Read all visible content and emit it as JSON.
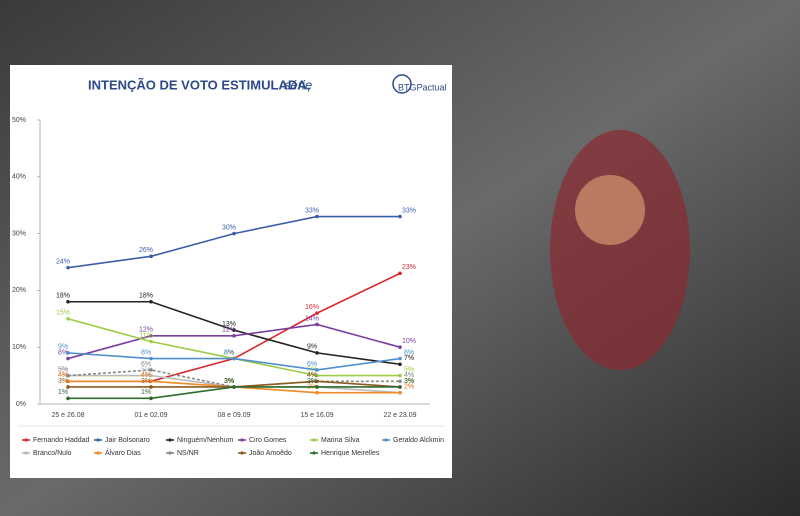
{
  "chart_data": {
    "type": "line",
    "title": "INTENÇÃO DE VOTO ESTIMULADA,",
    "subtitle": "série",
    "logo": "BTGPactual",
    "categories": [
      "25 e 26.08",
      "01 e 02.09",
      "08 e 09.09",
      "15 e 16.09",
      "22 e 23.09"
    ],
    "ylim": [
      0,
      50
    ],
    "yticks": [
      {
        "value": 0,
        "label": "0%"
      },
      {
        "value": 10,
        "label": "10%"
      },
      {
        "value": 20,
        "label": "20%"
      },
      {
        "value": 30,
        "label": "30%"
      },
      {
        "value": 40,
        "label": "40%"
      },
      {
        "value": 50,
        "label": "50%"
      }
    ],
    "grid": false,
    "series": [
      {
        "name": "Fernando Haddad",
        "color": "#d9262c",
        "values": [
          4,
          4,
          8,
          16,
          23
        ],
        "value_labels": [
          "4%",
          "4%",
          "8%",
          "16%",
          "23%"
        ]
      },
      {
        "name": "Jair Bolsonaro",
        "color": "#3b5ea8",
        "values": [
          24,
          26,
          30,
          33,
          33
        ],
        "value_labels": [
          "24%",
          "26%",
          "30%",
          "33%",
          "33%"
        ]
      },
      {
        "name": "Ninguém/Nenhum",
        "color": "#222222",
        "values": [
          18,
          18,
          13,
          9,
          7
        ],
        "value_labels": [
          "18%",
          "18%",
          "13%",
          "9%",
          "7%"
        ]
      },
      {
        "name": "Ciro Gomes",
        "color": "#7b3fa0",
        "values": [
          8,
          12,
          12,
          14,
          10
        ],
        "value_labels": [
          "8%",
          "12%",
          "12%",
          "14%",
          "10%"
        ]
      },
      {
        "name": "Marina Silva",
        "color": "#9ccc45",
        "values": [
          15,
          11,
          8,
          5,
          5
        ],
        "value_labels": [
          "15%",
          "11%",
          "8%",
          "5%",
          "5%"
        ]
      },
      {
        "name": "Geraldo Alckmin",
        "color": "#4f8fcf",
        "values": [
          9,
          8,
          8,
          6,
          8
        ],
        "value_labels": [
          "9%",
          "8%",
          "8%",
          "6%",
          "8%"
        ]
      },
      {
        "name": "Branco/Nulo",
        "color": "#bbbbbb",
        "values": [
          5,
          5,
          3,
          3,
          2
        ],
        "value_labels": [
          "5%",
          "5%",
          "3%",
          "3%",
          "2%"
        ]
      },
      {
        "name": "Álvaro Dias",
        "color": "#f08a24",
        "values": [
          4,
          4,
          3,
          2,
          2
        ],
        "value_labels": [
          "4%",
          "4%",
          "3%",
          "2%",
          "2%"
        ]
      },
      {
        "name": "NS/NR",
        "color": "#888888",
        "values": [
          5,
          6,
          3,
          4,
          4
        ],
        "value_labels": [
          "5%",
          "6%",
          "3%",
          "4%",
          "4%"
        ]
      },
      {
        "name": "João Amoêdo",
        "color": "#8a5a1e",
        "values": [
          3,
          3,
          3,
          4,
          3
        ],
        "value_labels": [
          "3%",
          "3%",
          "3%",
          "4%",
          "3%"
        ]
      },
      {
        "name": "Henrique Meirelles",
        "color": "#2e6b2e",
        "values": [
          1,
          1,
          3,
          3,
          3
        ],
        "value_labels": [
          "1%",
          "1%",
          "3%",
          "3%",
          "3%"
        ]
      }
    ]
  }
}
